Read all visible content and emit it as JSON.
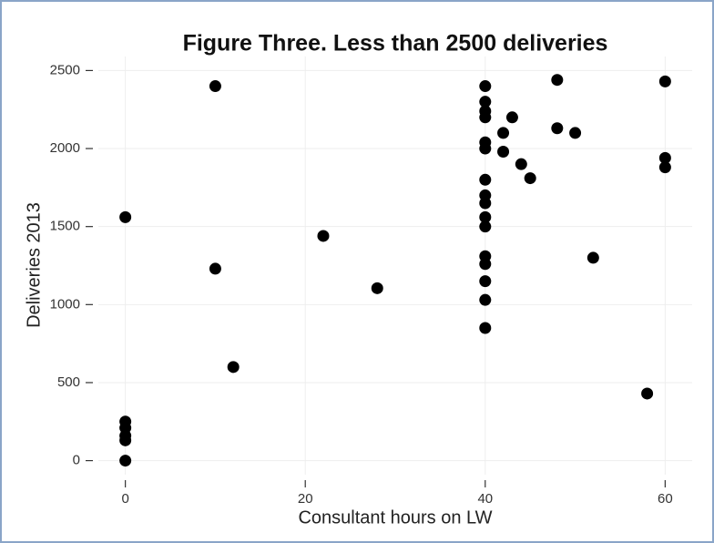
{
  "chart_data": {
    "type": "scatter",
    "title": "Figure Three. Less than 2500 deliveries",
    "x_label": "Consultant hours on LW",
    "y_label": "Deliveries 2013",
    "color": "#000000",
    "grid": true,
    "xlim": [
      -3,
      63
    ],
    "ylim": [
      -90,
      2590
    ],
    "xticks": [
      0,
      20,
      40,
      60
    ],
    "yticks": [
      0,
      500,
      1000,
      1500,
      2000,
      2500
    ],
    "x": [
      0,
      0,
      0,
      0,
      0,
      0,
      10,
      10,
      12,
      22,
      28,
      40,
      40,
      40,
      40,
      40,
      40,
      40,
      40,
      40,
      40,
      40,
      40,
      40,
      40,
      40,
      40,
      42,
      43,
      42,
      44,
      45,
      48,
      48,
      50,
      52,
      58,
      60,
      60,
      60
    ],
    "values": [
      1560,
      250,
      210,
      160,
      130,
      0,
      2400,
      1230,
      600,
      1440,
      1105,
      2400,
      2300,
      2240,
      2200,
      2040,
      2000,
      1800,
      1700,
      1650,
      1560,
      1500,
      1310,
      1260,
      1150,
      1030,
      850,
      2100,
      2200,
      1980,
      1900,
      1810,
      2440,
      2130,
      2100,
      1300,
      430,
      2430,
      1940,
      1880
    ]
  }
}
